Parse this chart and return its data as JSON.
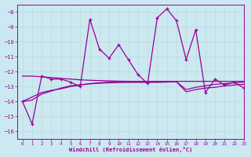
{
  "xlabel": "Windchill (Refroidissement éolien,°C)",
  "xlim": [
    -0.5,
    23
  ],
  "ylim": [
    -16.5,
    -7.5
  ],
  "yticks": [
    -16,
    -15,
    -14,
    -13,
    -12,
    -11,
    -10,
    -9,
    -8
  ],
  "xticks": [
    0,
    1,
    2,
    3,
    4,
    5,
    6,
    7,
    8,
    9,
    10,
    11,
    12,
    13,
    14,
    15,
    16,
    17,
    18,
    19,
    20,
    21,
    22,
    23
  ],
  "bg_color": "#cce8f0",
  "line_color": "#990099",
  "grid_color": "#aaddcc",
  "line1_x": [
    0,
    1,
    2,
    3,
    4,
    5,
    6,
    7,
    8,
    9,
    10,
    11,
    12,
    13,
    14,
    15,
    16,
    17,
    18,
    19,
    20,
    21,
    22,
    23
  ],
  "line1_y": [
    -14.0,
    -15.5,
    -12.3,
    -12.5,
    -12.5,
    -12.7,
    -13.0,
    -8.5,
    -10.5,
    -11.1,
    -10.2,
    -11.2,
    -12.2,
    -12.8,
    -8.4,
    -7.8,
    -8.6,
    -11.2,
    -9.2,
    -13.4,
    -12.5,
    -12.9,
    -12.7,
    -13.1
  ],
  "line2_x": [
    0,
    1,
    2,
    3,
    4,
    5,
    6,
    7,
    8,
    9,
    10,
    11,
    12,
    13,
    14,
    15,
    16,
    17,
    18,
    19,
    20,
    21,
    22,
    23
  ],
  "line2_y": [
    -12.3,
    -12.3,
    -12.35,
    -12.4,
    -12.45,
    -12.5,
    -12.55,
    -12.58,
    -12.6,
    -12.62,
    -12.64,
    -12.65,
    -12.65,
    -12.65,
    -12.65,
    -12.65,
    -12.65,
    -12.65,
    -12.65,
    -12.65,
    -12.65,
    -12.65,
    -12.65,
    -12.65
  ],
  "line3_x": [
    0,
    1,
    2,
    3,
    4,
    5,
    6,
    7,
    8,
    9,
    10,
    11,
    12,
    13,
    14,
    15,
    16,
    17,
    18,
    19,
    20,
    21,
    22,
    23
  ],
  "line3_y": [
    -14.0,
    -13.7,
    -13.4,
    -13.25,
    -13.15,
    -13.0,
    -12.9,
    -12.8,
    -12.75,
    -12.7,
    -12.68,
    -12.68,
    -12.68,
    -12.68,
    -12.68,
    -12.68,
    -12.68,
    -13.2,
    -13.05,
    -12.95,
    -12.85,
    -12.8,
    -12.75,
    -12.7
  ],
  "line4_x": [
    0,
    1,
    2,
    3,
    4,
    5,
    6,
    7,
    8,
    9,
    10,
    11,
    12,
    13,
    14,
    15,
    16,
    17,
    18,
    19,
    20,
    21,
    22,
    23
  ],
  "line4_y": [
    -14.0,
    -13.9,
    -13.5,
    -13.3,
    -13.1,
    -12.95,
    -12.88,
    -12.82,
    -12.78,
    -12.75,
    -12.73,
    -12.72,
    -12.72,
    -12.72,
    -12.72,
    -12.7,
    -12.68,
    -13.35,
    -13.2,
    -13.1,
    -13.05,
    -12.95,
    -12.9,
    -12.85
  ]
}
